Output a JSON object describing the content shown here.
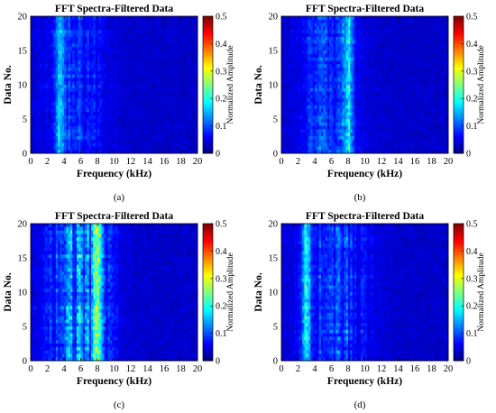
{
  "figure": {
    "panel_captions": [
      "(a)",
      "(b)",
      "(c)",
      "(d)"
    ]
  },
  "chart_data": [
    {
      "type": "heatmap",
      "panel": "(a)",
      "title": "FFT Spectra-Filtered Data",
      "xlabel": "Frequency (kHz)",
      "ylabel": "Data No.",
      "colorbar_label": "Normalized Amplitude",
      "xlim": [
        0,
        20
      ],
      "ylim": [
        0,
        20
      ],
      "clim": [
        0,
        0.5
      ],
      "x_ticks": [
        "0",
        "2",
        "4",
        "6",
        "8",
        "10",
        "12",
        "14",
        "16",
        "18",
        "20"
      ],
      "y_ticks": [
        "0",
        "5",
        "10",
        "15",
        "20"
      ],
      "colorbar_ticks": [
        "0",
        "0.1",
        "0.2",
        "0.3",
        "0.4",
        "0.5"
      ],
      "colormap": "jet",
      "dominant_band_khz": [
        2,
        9
      ],
      "peak_frequency_khz": 3.5,
      "peak_normalized_amplitude": 0.15,
      "background_normalized_amplitude": 0.04
    },
    {
      "type": "heatmap",
      "panel": "(b)",
      "title": "FFT Spectra-Filtered Data",
      "xlabel": "Frequency (kHz)",
      "ylabel": "Data No.",
      "colorbar_label": "Normalized Amplitude",
      "xlim": [
        0,
        20
      ],
      "ylim": [
        0,
        20
      ],
      "clim": [
        0,
        0.5
      ],
      "x_ticks": [
        "0",
        "2",
        "4",
        "6",
        "8",
        "10",
        "12",
        "14",
        "16",
        "18",
        "20"
      ],
      "y_ticks": [
        "0",
        "5",
        "10",
        "15",
        "20"
      ],
      "colorbar_ticks": [
        "0",
        "0.1",
        "0.2",
        "0.3",
        "0.4",
        "0.5"
      ],
      "colormap": "jet",
      "dominant_band_khz": [
        2.5,
        9
      ],
      "peak_frequency_khz": 8,
      "peak_normalized_amplitude": 0.18,
      "background_normalized_amplitude": 0.04
    },
    {
      "type": "heatmap",
      "panel": "(c)",
      "title": "FFT Spectra-Filtered Data",
      "xlabel": "Frequency (kHz)",
      "ylabel": "Data No.",
      "colorbar_label": "Normalized Amplitude",
      "xlim": [
        0,
        20
      ],
      "ylim": [
        0,
        20
      ],
      "clim": [
        0,
        0.5
      ],
      "x_ticks": [
        "0",
        "2",
        "4",
        "6",
        "8",
        "10",
        "12",
        "14",
        "16",
        "18",
        "20"
      ],
      "y_ticks": [
        "0",
        "5",
        "10",
        "15",
        "20"
      ],
      "colorbar_ticks": [
        "0",
        "0.1",
        "0.2",
        "0.3",
        "0.4",
        "0.5"
      ],
      "colormap": "jet",
      "dominant_band_khz": [
        2.5,
        9.5
      ],
      "peak_frequency_khz": 8,
      "peak_normalized_amplitude": 0.3,
      "background_normalized_amplitude": 0.04
    },
    {
      "type": "heatmap",
      "panel": "(d)",
      "title": "FFT Spectra-Filtered Data",
      "xlabel": "Frequency (kHz)",
      "ylabel": "Data No.",
      "colorbar_label": "Normalized Amplitude",
      "xlim": [
        0,
        20
      ],
      "ylim": [
        0,
        20
      ],
      "clim": [
        0,
        0.5
      ],
      "x_ticks": [
        "0",
        "2",
        "4",
        "6",
        "8",
        "10",
        "12",
        "14",
        "16",
        "18",
        "20"
      ],
      "y_ticks": [
        "0",
        "5",
        "10",
        "15",
        "20"
      ],
      "colorbar_ticks": [
        "0",
        "0.1",
        "0.2",
        "0.3",
        "0.4",
        "0.5"
      ],
      "colormap": "jet",
      "dominant_band_khz": [
        2.5,
        10
      ],
      "peak_frequency_khz": 3,
      "peak_normalized_amplitude": 0.2,
      "background_normalized_amplitude": 0.04
    }
  ]
}
